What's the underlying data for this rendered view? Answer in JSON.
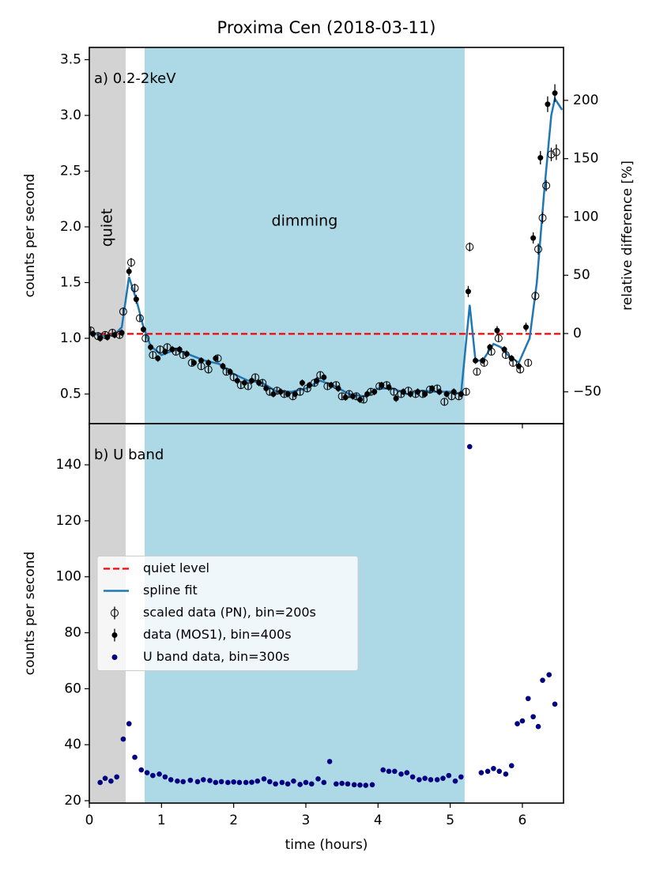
{
  "chart_data": [
    {
      "type": "scatter",
      "title": "Proxima Cen (2018-03-11)",
      "panel_label": "a) 0.2-2keV",
      "ylabel": "counts per second",
      "y2label": "relative difference [%]",
      "xlim": [
        0,
        6.57
      ],
      "xticks": [
        0,
        1,
        2,
        3,
        4,
        5,
        6
      ],
      "ylim": [
        0.234,
        3.61
      ],
      "yticks": [
        0.5,
        {
          "value": 1.0,
          "label": "1.0"
        },
        1.5,
        {
          "value": 2.0,
          "label": "2.0"
        },
        2.5,
        {
          "value": 3.0,
          "label": "3.0"
        },
        3.5
      ],
      "y2lim": [
        -77.3,
        245.4
      ],
      "y2ticks": [
        {
          "value": -50,
          "label": "−50"
        },
        0,
        50,
        100,
        150,
        200
      ],
      "regions": [
        {
          "label": "quiet",
          "range": [
            0,
            0.504
          ],
          "color": "#d3d3d3"
        },
        {
          "label": "dimming",
          "range": [
            0.766,
            5.2
          ],
          "color": "#add8e6"
        }
      ],
      "series": [
        {
          "name": "quiet level",
          "kind": "hline",
          "color": "#ff0000",
          "values": [
            1.04
          ]
        },
        {
          "name": "spline fit",
          "kind": "line",
          "color": "#1f77b4",
          "x": [
            0,
            0.2,
            0.35,
            0.45,
            0.55,
            0.65,
            0.75,
            0.85,
            1.0,
            1.2,
            1.4,
            1.6,
            1.8,
            2.0,
            2.2,
            2.4,
            2.6,
            2.8,
            3.0,
            3.2,
            3.4,
            3.6,
            3.8,
            4.0,
            4.2,
            4.4,
            4.6,
            4.8,
            5.0,
            5.15,
            5.27,
            5.35,
            5.45,
            5.6,
            5.7,
            5.8,
            5.95,
            6.1,
            6.2,
            6.3,
            6.4,
            6.45,
            6.55
          ],
          "values": [
            1.05,
            1.02,
            1.03,
            1.1,
            1.55,
            1.35,
            1.1,
            0.93,
            0.85,
            0.9,
            0.85,
            0.8,
            0.77,
            0.68,
            0.62,
            0.6,
            0.52,
            0.52,
            0.55,
            0.62,
            0.57,
            0.5,
            0.48,
            0.55,
            0.55,
            0.5,
            0.53,
            0.52,
            0.52,
            0.5,
            1.3,
            0.8,
            0.8,
            0.95,
            0.92,
            0.85,
            0.78,
            1.0,
            1.5,
            2.3,
            3.0,
            3.15,
            3.05
          ]
        },
        {
          "name": "scaled data (PN), bin=200s",
          "kind": "open",
          "color": "#000000",
          "x": [
            0.02,
            0.12,
            0.22,
            0.32,
            0.42,
            0.47,
            0.58,
            0.63,
            0.7,
            0.78,
            0.88,
            0.98,
            1.08,
            1.2,
            1.3,
            1.42,
            1.55,
            1.65,
            1.78,
            1.9,
            2.0,
            2.1,
            2.2,
            2.3,
            2.4,
            2.5,
            2.6,
            2.7,
            2.82,
            2.92,
            3.02,
            3.12,
            3.2,
            3.3,
            3.42,
            3.5,
            3.6,
            3.7,
            3.8,
            3.9,
            4.02,
            4.12,
            4.22,
            4.32,
            4.42,
            4.52,
            4.62,
            4.72,
            4.82,
            4.92,
            5.02,
            5.12,
            5.22,
            5.27,
            5.37,
            5.47,
            5.57,
            5.67,
            5.77,
            5.87,
            5.97,
            6.08,
            6.18,
            6.22,
            6.28,
            6.33,
            6.4,
            6.47
          ],
          "values": [
            1.07,
            1.02,
            1.03,
            1.05,
            1.03,
            1.24,
            1.68,
            1.45,
            1.18,
            1.0,
            0.85,
            0.9,
            0.92,
            0.88,
            0.85,
            0.78,
            0.75,
            0.72,
            0.82,
            0.7,
            0.65,
            0.58,
            0.57,
            0.65,
            0.6,
            0.52,
            0.53,
            0.5,
            0.48,
            0.52,
            0.55,
            0.6,
            0.67,
            0.57,
            0.58,
            0.48,
            0.5,
            0.48,
            0.45,
            0.52,
            0.57,
            0.58,
            0.52,
            0.5,
            0.53,
            0.5,
            0.5,
            0.54,
            0.55,
            0.43,
            0.48,
            0.48,
            0.52,
            1.82,
            0.7,
            0.78,
            0.88,
            1.0,
            0.85,
            0.78,
            0.72,
            0.78,
            1.38,
            1.8,
            2.08,
            2.37,
            2.65,
            2.67
          ],
          "errors": [
            0.03,
            0.03,
            0.03,
            0.03,
            0.03,
            0.03,
            0.04,
            0.04,
            0.03,
            0.03,
            0.03,
            0.03,
            0.03,
            0.03,
            0.03,
            0.03,
            0.03,
            0.03,
            0.03,
            0.03,
            0.03,
            0.03,
            0.03,
            0.03,
            0.03,
            0.03,
            0.03,
            0.03,
            0.03,
            0.03,
            0.03,
            0.03,
            0.03,
            0.03,
            0.03,
            0.03,
            0.03,
            0.03,
            0.03,
            0.03,
            0.03,
            0.03,
            0.03,
            0.03,
            0.03,
            0.03,
            0.03,
            0.03,
            0.03,
            0.03,
            0.03,
            0.03,
            0.03,
            0.04,
            0.03,
            0.03,
            0.03,
            0.03,
            0.03,
            0.03,
            0.03,
            0.03,
            0.04,
            0.05,
            0.05,
            0.05,
            0.06,
            0.07
          ]
        },
        {
          "name": "data (MOS1), bin=400s",
          "kind": "filled",
          "color": "#000000",
          "x": [
            0.05,
            0.15,
            0.25,
            0.35,
            0.45,
            0.55,
            0.65,
            0.75,
            0.85,
            0.95,
            1.05,
            1.15,
            1.25,
            1.35,
            1.45,
            1.55,
            1.65,
            1.75,
            1.85,
            1.95,
            2.05,
            2.15,
            2.25,
            2.35,
            2.45,
            2.55,
            2.65,
            2.75,
            2.85,
            2.95,
            3.05,
            3.15,
            3.25,
            3.35,
            3.45,
            3.55,
            3.65,
            3.75,
            3.85,
            3.95,
            4.05,
            4.15,
            4.25,
            4.35,
            4.45,
            4.55,
            4.65,
            4.75,
            4.85,
            4.95,
            5.05,
            5.15,
            5.25,
            5.35,
            5.45,
            5.55,
            5.65,
            5.75,
            5.85,
            5.95,
            6.05,
            6.15,
            6.25,
            6.35,
            6.45
          ],
          "values": [
            1.04,
            1.0,
            1.01,
            1.03,
            1.05,
            1.6,
            1.35,
            1.08,
            0.92,
            0.82,
            0.88,
            0.9,
            0.9,
            0.86,
            0.78,
            0.8,
            0.78,
            0.82,
            0.75,
            0.7,
            0.62,
            0.6,
            0.62,
            0.6,
            0.55,
            0.5,
            0.52,
            0.5,
            0.5,
            0.6,
            0.58,
            0.62,
            0.65,
            0.58,
            0.55,
            0.47,
            0.48,
            0.45,
            0.5,
            0.52,
            0.58,
            0.56,
            0.46,
            0.52,
            0.5,
            0.52,
            0.5,
            0.55,
            0.52,
            0.5,
            0.52,
            0.5,
            1.42,
            0.8,
            0.8,
            0.92,
            1.07,
            0.9,
            0.82,
            0.75,
            1.1,
            1.9,
            2.62,
            3.1,
            3.2
          ],
          "errors": [
            0.03,
            0.03,
            0.03,
            0.03,
            0.03,
            0.04,
            0.04,
            0.03,
            0.03,
            0.03,
            0.03,
            0.03,
            0.03,
            0.03,
            0.03,
            0.03,
            0.03,
            0.03,
            0.03,
            0.03,
            0.03,
            0.03,
            0.03,
            0.03,
            0.03,
            0.03,
            0.03,
            0.03,
            0.03,
            0.03,
            0.03,
            0.03,
            0.03,
            0.03,
            0.03,
            0.03,
            0.03,
            0.03,
            0.03,
            0.03,
            0.03,
            0.03,
            0.03,
            0.03,
            0.03,
            0.03,
            0.03,
            0.03,
            0.03,
            0.03,
            0.03,
            0.03,
            0.05,
            0.03,
            0.03,
            0.03,
            0.04,
            0.03,
            0.03,
            0.03,
            0.04,
            0.05,
            0.06,
            0.07,
            0.08
          ]
        }
      ]
    },
    {
      "type": "scatter",
      "panel_label": "b) U band",
      "xlabel": "time (hours)",
      "ylabel": "counts per second",
      "xlim": [
        0,
        6.57
      ],
      "xticks": [
        0,
        1,
        2,
        3,
        4,
        5,
        6
      ],
      "ylim": [
        19.15,
        154.7
      ],
      "yticks": [
        20,
        40,
        60,
        80,
        100,
        120,
        140
      ],
      "legend": "center left",
      "series": [
        {
          "name": "U band data, bin=300s",
          "kind": "dot",
          "color": "#000080",
          "x": [
            0.15,
            0.22,
            0.3,
            0.38,
            0.47,
            0.55,
            0.63,
            0.72,
            0.8,
            0.88,
            0.97,
            1.05,
            1.13,
            1.22,
            1.3,
            1.4,
            1.5,
            1.58,
            1.67,
            1.75,
            1.83,
            1.92,
            2.0,
            2.08,
            2.17,
            2.25,
            2.33,
            2.42,
            2.5,
            2.58,
            2.67,
            2.75,
            2.83,
            2.92,
            3.0,
            3.08,
            3.17,
            3.25,
            3.33,
            3.42,
            3.5,
            3.58,
            3.67,
            3.75,
            3.83,
            3.92,
            4.07,
            4.15,
            4.23,
            4.32,
            4.4,
            4.48,
            4.57,
            4.65,
            4.73,
            4.82,
            4.9,
            4.98,
            5.07,
            5.15,
            5.27,
            5.43,
            5.52,
            5.6,
            5.68,
            5.77,
            5.85,
            5.93,
            6.0,
            6.08,
            6.15,
            6.22,
            6.28,
            6.37,
            6.45
          ],
          "values": [
            26.5,
            28,
            27,
            28.5,
            42,
            47.5,
            35.5,
            31,
            30,
            29,
            29.5,
            28.5,
            27.5,
            27,
            26.8,
            27.3,
            26.8,
            27.5,
            27.2,
            26.5,
            26.8,
            26.5,
            26.7,
            26.5,
            26.5,
            26.6,
            27,
            27.8,
            26.8,
            26,
            26.5,
            26,
            27,
            25.8,
            26.5,
            26,
            27.8,
            26.5,
            34,
            26,
            26.2,
            26,
            25.7,
            25.6,
            25.5,
            25.7,
            31,
            30.5,
            30.5,
            29.5,
            30,
            28.5,
            27.5,
            28,
            27.5,
            27.5,
            28,
            29,
            27,
            28.5,
            146.5,
            30,
            30.5,
            31.5,
            30.5,
            29.5,
            32.5,
            47.5,
            48.5,
            56.5,
            50,
            46.5,
            63,
            65,
            54.5
          ]
        }
      ]
    }
  ]
}
